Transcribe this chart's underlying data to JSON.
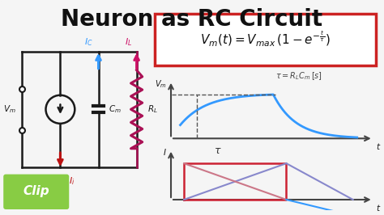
{
  "title": "Neuron as RC Circuit",
  "title_fontsize": 20,
  "bg_color": "#f5f5f5",
  "border_color": "#88cc44",
  "clip_text": "Clip",
  "clip_bg": "#88cc44",
  "formula_box_color": "#cc2222",
  "circuit_color": "#1a1a1a",
  "Ic_color": "#3399ff",
  "IL_color": "#cc1166",
  "Ii_color": "#bb1111",
  "graph_blue": "#3399ff",
  "graph_blue2": "#6688cc",
  "graph_red": "#cc2233",
  "graph_axis_color": "#444444",
  "dash_color": "#555555"
}
